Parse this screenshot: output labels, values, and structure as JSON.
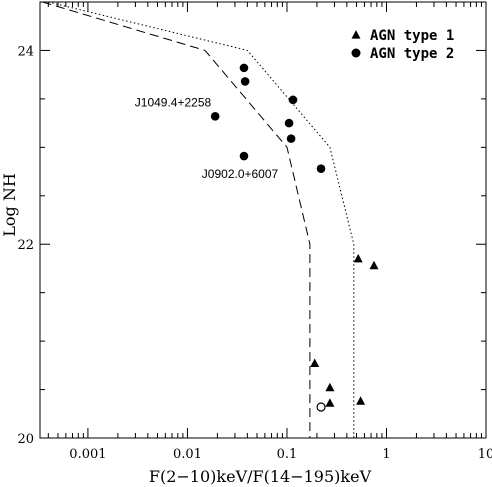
{
  "chart_data": {
    "type": "scatter",
    "xlabel": "F(2−10)keV/F(14−195)keV",
    "ylabel": "Log NH",
    "xscale": "log",
    "xlim": [
      0.00033,
      10
    ],
    "ylim": [
      20,
      24.5
    ],
    "xticks": [
      {
        "value": 0.001,
        "label": "0.001"
      },
      {
        "value": 0.01,
        "label": "0.01"
      },
      {
        "value": 0.1,
        "label": "0.1"
      },
      {
        "value": 1,
        "label": "1"
      },
      {
        "value": 10,
        "label": "10"
      }
    ],
    "yticks": [
      {
        "value": 20,
        "label": "20"
      },
      {
        "value": 22,
        "label": "22"
      },
      {
        "value": 24,
        "label": "24"
      }
    ],
    "legend": {
      "placement": "top-right",
      "entries": [
        {
          "label": "AGN type 1",
          "marker": "triangle"
        },
        {
          "label": "AGN type 2",
          "marker": "circle"
        }
      ]
    },
    "series": [
      {
        "name": "AGN type 1",
        "marker": "triangle",
        "points": [
          {
            "x": 0.52,
            "y": 21.85
          },
          {
            "x": 0.75,
            "y": 21.78
          },
          {
            "x": 0.27,
            "y": 20.52
          },
          {
            "x": 0.19,
            "y": 20.77
          },
          {
            "x": 0.27,
            "y": 20.36
          },
          {
            "x": 0.55,
            "y": 20.38
          }
        ]
      },
      {
        "name": "AGN type 2",
        "marker": "circle",
        "points": [
          {
            "x": 0.037,
            "y": 23.82
          },
          {
            "x": 0.038,
            "y": 23.68
          },
          {
            "x": 0.115,
            "y": 23.49
          },
          {
            "x": 0.019,
            "y": 23.32
          },
          {
            "x": 0.105,
            "y": 23.25
          },
          {
            "x": 0.11,
            "y": 23.09
          },
          {
            "x": 0.037,
            "y": 22.91
          },
          {
            "x": 0.22,
            "y": 22.78
          }
        ]
      },
      {
        "marker": "open-circle",
        "points": [
          {
            "x": 0.22,
            "y": 20.32
          }
        ]
      }
    ],
    "curves": [
      {
        "style": "dashed",
        "points": [
          [
            0.00035,
            24.5
          ],
          [
            0.015,
            24.0
          ],
          [
            0.1,
            23.0
          ],
          [
            0.17,
            22.0
          ],
          [
            0.17,
            20.0
          ]
        ]
      },
      {
        "style": "dotted",
        "points": [
          [
            0.0004,
            24.5
          ],
          [
            0.04,
            24.0
          ],
          [
            0.27,
            23.0
          ],
          [
            0.47,
            22.0
          ],
          [
            0.47,
            20.0
          ]
        ]
      }
    ],
    "annotations": [
      {
        "text": "J1049.4+2258",
        "x": 0.019,
        "y": 23.32
      },
      {
        "text": "J0902.0+6007",
        "x": 0.037,
        "y": 22.91
      }
    ]
  }
}
